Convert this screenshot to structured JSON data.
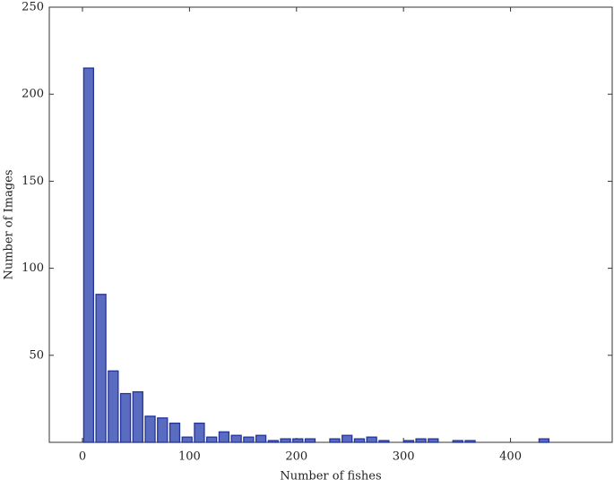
{
  "chart_data": {
    "type": "histogram",
    "xlabel": "Number of fishes",
    "ylabel": "Number of Images",
    "bins": [
      0,
      11.5,
      23,
      34.5,
      46,
      57.5,
      69,
      80.5,
      92,
      103.5,
      115,
      126.5,
      138,
      149.5,
      161,
      172.5,
      184,
      195.5,
      207,
      218.5,
      230,
      241.5,
      253,
      264.5,
      276,
      287.5,
      299,
      310.5,
      322,
      333.5,
      345,
      356.5,
      368,
      379.5,
      391,
      402.5,
      414,
      425.5,
      437
    ],
    "values": [
      215,
      85,
      41,
      28,
      29,
      15,
      14,
      11,
      3,
      11,
      3,
      6,
      4,
      3,
      4,
      1,
      2,
      2,
      2,
      0,
      2,
      4,
      2,
      3,
      1,
      0,
      1,
      2,
      2,
      0,
      1,
      1,
      0,
      0,
      0,
      0,
      0,
      2
    ],
    "color": "#5a6cc0",
    "edgecolor": "#24349a",
    "xlim": [
      -31,
      495
    ],
    "xticks": [
      0,
      100,
      200,
      300,
      400
    ],
    "ylim": [
      0,
      250
    ],
    "yticks": [
      50,
      100,
      150,
      200,
      250
    ]
  }
}
